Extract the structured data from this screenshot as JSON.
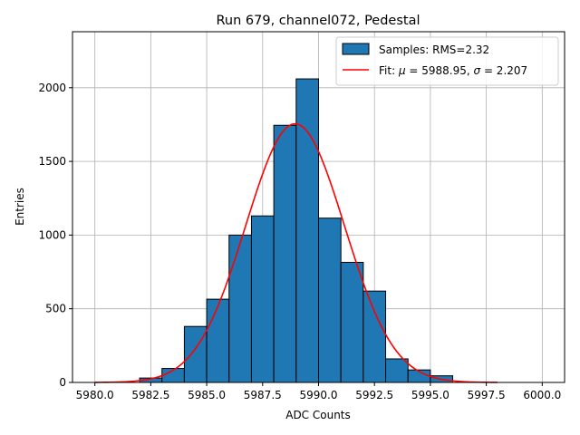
{
  "chart_data": {
    "type": "bar",
    "title": "Run 679, channel072, Pedestal",
    "xlabel": "ADC Counts",
    "ylabel": "Entries",
    "xlim": [
      5979.0,
      6001.0
    ],
    "ylim": [
      0,
      2380
    ],
    "xticks": [
      5980.0,
      5982.5,
      5985.0,
      5987.5,
      5990.0,
      5992.5,
      5995.0,
      5997.5,
      6000.0
    ],
    "xtick_labels": [
      "5980.0",
      "5982.5",
      "5985.0",
      "5987.5",
      "5990.0",
      "5992.5",
      "5995.0",
      "5997.5",
      "6000.0"
    ],
    "yticks": [
      0,
      500,
      1000,
      1500,
      2000
    ],
    "ytick_labels": [
      "0",
      "500",
      "1000",
      "1500",
      "2000"
    ],
    "grid": true,
    "legend_position": "top-right",
    "histogram": {
      "name": "Samples: RMS=2.32",
      "color": "#1f77b4",
      "bins": [
        {
          "x0": 5982,
          "x1": 5983,
          "count": 30
        },
        {
          "x0": 5983,
          "x1": 5984,
          "count": 95
        },
        {
          "x0": 5984,
          "x1": 5985,
          "count": 380
        },
        {
          "x0": 5985,
          "x1": 5986,
          "count": 565
        },
        {
          "x0": 5986,
          "x1": 5987,
          "count": 1000
        },
        {
          "x0": 5987,
          "x1": 5988,
          "count": 1130
        },
        {
          "x0": 5988,
          "x1": 5989,
          "count": 1745
        },
        {
          "x0": 5989,
          "x1": 5990,
          "count": 2060
        },
        {
          "x0": 5990,
          "x1": 5991,
          "count": 1115
        },
        {
          "x0": 5991,
          "x1": 5992,
          "count": 815
        },
        {
          "x0": 5992,
          "x1": 5993,
          "count": 620
        },
        {
          "x0": 5993,
          "x1": 5994,
          "count": 160
        },
        {
          "x0": 5994,
          "x1": 5995,
          "count": 85
        },
        {
          "x0": 5995,
          "x1": 5996,
          "count": 45
        }
      ]
    },
    "fit": {
      "name_prefix": "Fit: ",
      "mu_symbol": "μ",
      "mu_text": " = 5988.95, ",
      "sigma_symbol": "σ",
      "sigma_text": " = 2.207",
      "color": "#ff0000",
      "mu": 5988.95,
      "sigma": 2.207,
      "amplitude": 1755,
      "x_range": [
        5980.0,
        5998.0
      ]
    }
  }
}
